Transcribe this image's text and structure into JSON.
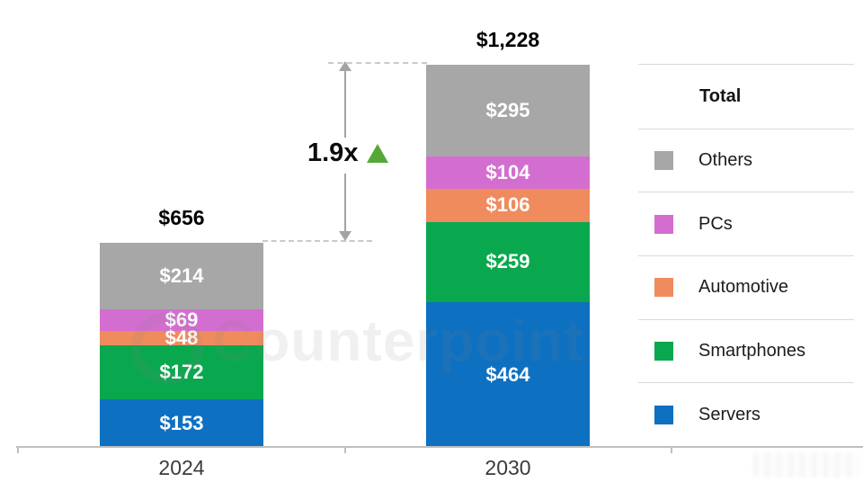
{
  "watermark": {
    "text": "Counterpoint"
  },
  "chart_data": {
    "type": "bar",
    "stacked": true,
    "categories": [
      "2024",
      "2030"
    ],
    "series": [
      {
        "name": "Servers",
        "color": "#0e70c0",
        "values": [
          153,
          464
        ]
      },
      {
        "name": "Smartphones",
        "color": "#0aa84e",
        "values": [
          172,
          259
        ]
      },
      {
        "name": "Automotive",
        "color": "#f08b5e",
        "values": [
          48,
          106
        ]
      },
      {
        "name": "PCs",
        "color": "#d36ed0",
        "values": [
          69,
          104
        ]
      },
      {
        "name": "Others",
        "color": "#a7a7a7",
        "values": [
          214,
          295
        ]
      }
    ],
    "totals": [
      656,
      1228
    ],
    "totals_display": [
      "$656",
      "$1,228"
    ],
    "value_prefix": "$",
    "annotation": {
      "text": "1.9x",
      "direction": "up",
      "triangle_color": "#56a836"
    },
    "legend": {
      "header": "Total",
      "position": "right",
      "items_top_to_bottom": [
        "Others",
        "PCs",
        "Automotive",
        "Smartphones",
        "Servers"
      ]
    },
    "axis": {
      "gridlines": false,
      "ylim": [
        0,
        1228
      ]
    }
  }
}
